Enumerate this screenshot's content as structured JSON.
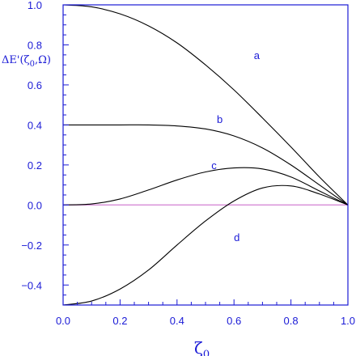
{
  "chart_data": {
    "type": "line",
    "title": "",
    "xlabel": "ζ",
    "xlabel_sub": "0",
    "ylabel": "ΔE'(ζ0,Ω)",
    "xlim": [
      0.0,
      1.0
    ],
    "ylim": [
      -0.5,
      1.0
    ],
    "xticks": [
      "0.0",
      "0.2",
      "0.4",
      "0.6",
      "0.8",
      "1.0"
    ],
    "yticks": [
      "1.0",
      "0.8",
      "0.6",
      "0.4",
      "0.2",
      "0.0",
      "−0.2",
      "−0.4"
    ],
    "grid": false,
    "legend": "none",
    "colors": {
      "axes": "#1a1ad6",
      "curves": "#000000",
      "zero_line": "#d68ad6",
      "text": "#1a1ad6"
    },
    "reference_line": {
      "y": 0.0
    },
    "series": [
      {
        "name": "a",
        "x": [
          0,
          0.1,
          0.2,
          0.3,
          0.4,
          0.5,
          0.6,
          0.7,
          0.8,
          0.9,
          1.0
        ],
        "values": [
          1.0,
          0.99,
          0.955,
          0.895,
          0.81,
          0.7,
          0.575,
          0.435,
          0.29,
          0.14,
          0.0
        ]
      },
      {
        "name": "b",
        "x": [
          0,
          0.1,
          0.2,
          0.3,
          0.4,
          0.5,
          0.6,
          0.7,
          0.8,
          0.9,
          1.0
        ],
        "values": [
          0.4,
          0.4,
          0.4,
          0.4,
          0.395,
          0.38,
          0.345,
          0.285,
          0.2,
          0.1,
          0.0
        ]
      },
      {
        "name": "c",
        "x": [
          0,
          0.1,
          0.2,
          0.3,
          0.4,
          0.5,
          0.6,
          0.7,
          0.8,
          0.9,
          1.0
        ],
        "values": [
          0.0,
          0.005,
          0.03,
          0.075,
          0.125,
          0.165,
          0.185,
          0.18,
          0.14,
          0.07,
          0.0
        ]
      },
      {
        "name": "d",
        "x": [
          0,
          0.1,
          0.2,
          0.3,
          0.4,
          0.5,
          0.6,
          0.7,
          0.8,
          0.9,
          1.0
        ],
        "values": [
          -0.5,
          -0.48,
          -0.42,
          -0.325,
          -0.2,
          -0.08,
          0.02,
          0.085,
          0.095,
          0.055,
          0.0
        ]
      }
    ],
    "annotations": [
      {
        "text": "a",
        "x": 0.68,
        "y": 0.73
      },
      {
        "text": "b",
        "x": 0.55,
        "y": 0.41
      },
      {
        "text": "c",
        "x": 0.53,
        "y": 0.18
      },
      {
        "text": "d",
        "x": 0.61,
        "y": -0.18
      }
    ]
  }
}
